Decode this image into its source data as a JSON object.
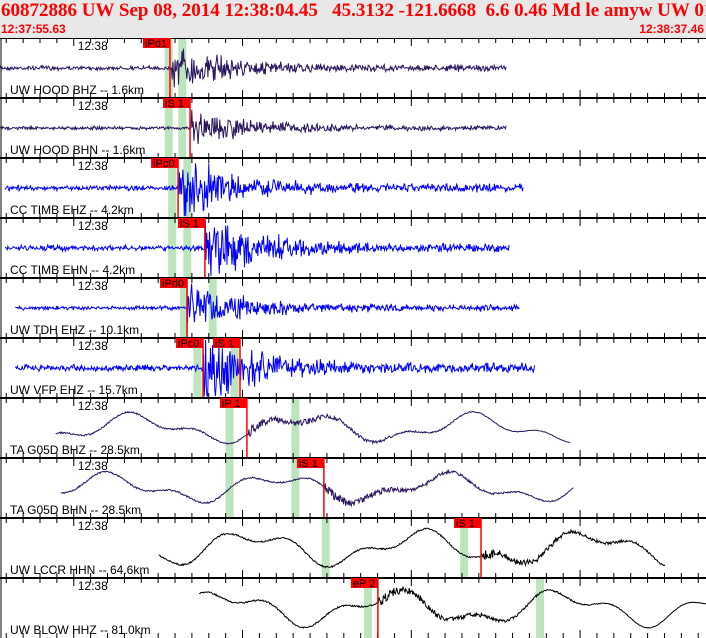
{
  "header": {
    "title": "60872886 UW Sep 08, 2014 12:38:04.45   45.3132 -121.6668  6.6 0.46 Md le amyw UW 01   3",
    "start_time": "12:37:55.63",
    "end_time": "12:38:37.46",
    "title_color": "#ff0000"
  },
  "time_axis": {
    "major_tick_label": "12:38",
    "major_tick_time": "12:38:00"
  },
  "colors": {
    "pick": "#ff0000",
    "predicted_band": "#bde5bd",
    "indigo": "#2b1760",
    "blue": "#0000ff",
    "black": "#000000"
  },
  "traces": [
    {
      "label": "UW HOOD BHZ -- 1.6km",
      "color": "indigo",
      "picks": [
        {
          "label": "iPd1",
          "time": "12:38:05.70"
        }
      ]
    },
    {
      "label": "UW HOOD BHN -- 1.6km",
      "color": "indigo",
      "picks": [
        {
          "label": "iS 1",
          "time": "12:38:06.89"
        }
      ]
    },
    {
      "label": "CC TIMB EHZ -- 4.2km",
      "color": "blue",
      "picks": [
        {
          "label": "iPc0",
          "time": "12:38:06.18"
        }
      ]
    },
    {
      "label": "CC TIMB EHN -- 4.2km",
      "color": "blue",
      "picks": [
        {
          "label": "iS 1",
          "time": "12:38:07.77"
        }
      ]
    },
    {
      "label": "UW TDH EHZ -- 10.1km",
      "color": "blue",
      "picks": [
        {
          "label": "iPd0",
          "time": "12:38:06.71"
        }
      ]
    },
    {
      "label": "UW VFP EHZ -- 15.7km",
      "color": "blue",
      "picks": [
        {
          "label": "iPc0",
          "time": "12:38:07.66"
        },
        {
          "label": "iS 1",
          "time": "12:38:09.85"
        }
      ]
    },
    {
      "label": "TA G05D BHZ -- 28.5km",
      "color": "indigo",
      "picks": [
        {
          "label": "iP 1",
          "time": "12:38:10.26"
        }
      ]
    },
    {
      "label": "TA G05D BHN -- 28.5km",
      "color": "indigo",
      "picks": [
        {
          "label": "iS 1",
          "time": "12:38:14.82"
        }
      ]
    },
    {
      "label": "UW LCCR HHN -- 64.6km",
      "color": "black",
      "picks": [
        {
          "label": "iS 1",
          "time": "12:38:24.13"
        }
      ]
    },
    {
      "label": "UW BLOW HHZ -- 81.0km",
      "color": "black",
      "picks": [
        {
          "label": "eP 2",
          "time": "12:38:18.02"
        }
      ]
    }
  ]
}
